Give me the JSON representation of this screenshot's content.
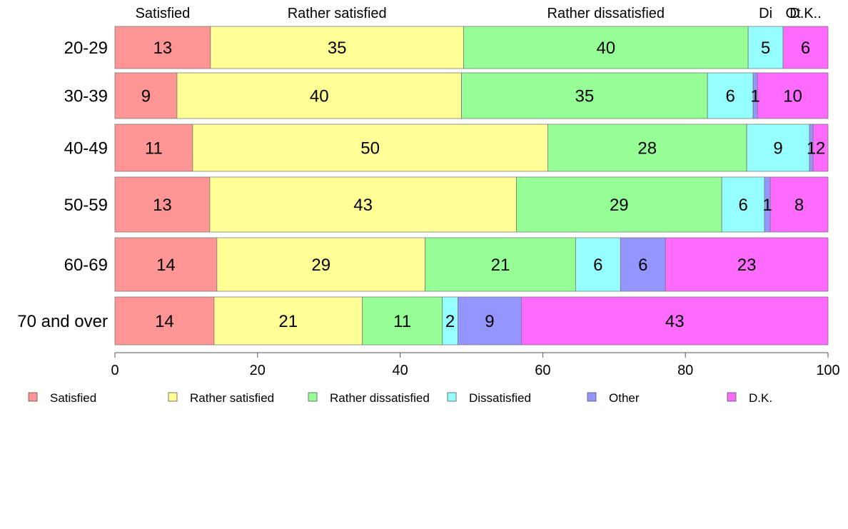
{
  "chart_data": {
    "type": "bar",
    "orientation": "horizontal",
    "stacked": true,
    "categories": [
      "20-29",
      "30-39",
      "40-49",
      "50-59",
      "60-69",
      "70 and over"
    ],
    "series": [
      {
        "name": "Satisfied",
        "color": "#FF9595",
        "values": [
          13.4,
          8.7,
          10.9,
          13.3,
          14.3,
          13.9
        ],
        "labels": [
          "13",
          "9",
          "11",
          "13",
          "14",
          "14"
        ]
      },
      {
        "name": "Rather satisfied",
        "color": "#FFFF95",
        "values": [
          35.5,
          39.9,
          49.8,
          43.0,
          29.2,
          20.8
        ],
        "labels": [
          "35",
          "40",
          "50",
          "43",
          "29",
          "21"
        ]
      },
      {
        "name": "Rather dissatisfied",
        "color": "#95FF95",
        "values": [
          39.9,
          34.5,
          27.9,
          28.8,
          21.1,
          11.2
        ],
        "labels": [
          "40",
          "35",
          "28",
          "29",
          "21",
          "11"
        ]
      },
      {
        "name": "Dissatisfied",
        "color": "#95FFFF",
        "values": [
          4.9,
          6.4,
          8.8,
          6.0,
          6.3,
          2.2
        ],
        "labels": [
          "5",
          "6",
          "9",
          "6",
          "6",
          "2"
        ]
      },
      {
        "name": "Other",
        "color": "#9595FF",
        "values": [
          0.0,
          0.6,
          0.5,
          0.8,
          6.3,
          8.9
        ],
        "labels": [
          "",
          "1",
          "1",
          "1",
          "6",
          "9"
        ]
      },
      {
        "name": "D.K.",
        "color": "#FF6BFF",
        "values": [
          6.3,
          9.9,
          2.1,
          8.1,
          22.8,
          43.0
        ],
        "labels": [
          "6",
          "10",
          "2",
          "8",
          "23",
          "43"
        ]
      }
    ],
    "top_labels": [
      "Satisfied",
      "Rather satisfied",
      "Rather dissatisfied",
      "Di",
      "Ot",
      "D.K.."
    ],
    "xlim": [
      0,
      100
    ],
    "xticks": [
      0,
      20,
      40,
      60,
      80,
      100
    ],
    "grid": false,
    "legend_position": "bottom"
  }
}
